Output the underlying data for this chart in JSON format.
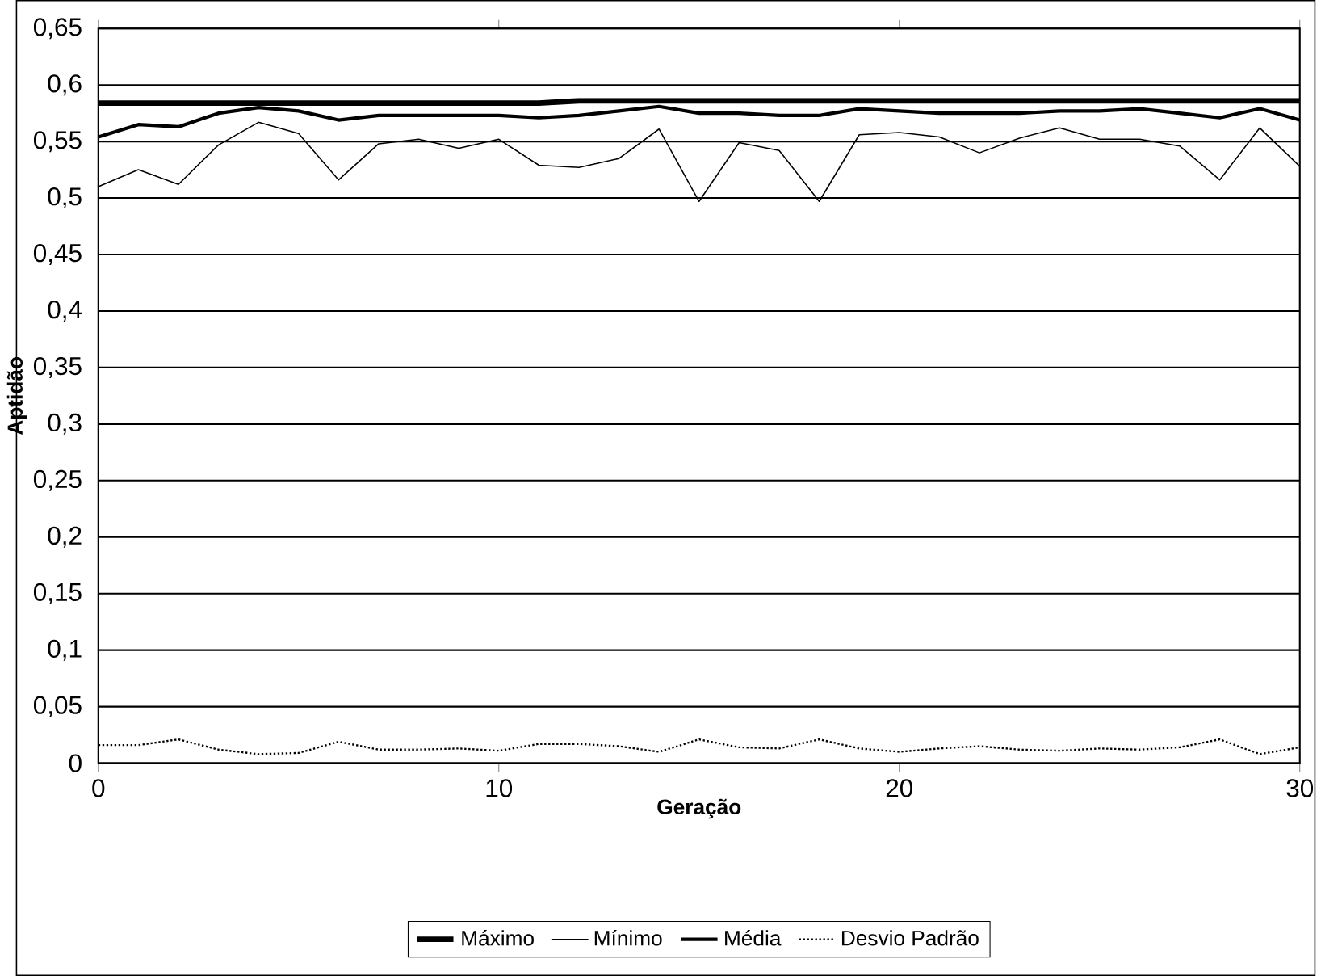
{
  "chart_data": {
    "type": "line",
    "xlabel": "Geração",
    "ylabel": "Aptidão",
    "x": [
      0,
      1,
      2,
      3,
      4,
      5,
      6,
      7,
      8,
      9,
      10,
      11,
      12,
      13,
      14,
      15,
      16,
      17,
      18,
      19,
      20,
      21,
      22,
      23,
      24,
      25,
      26,
      27,
      28,
      29,
      30
    ],
    "series": [
      {
        "name": "Máximo",
        "color": "#000000",
        "line_style": "solid",
        "values": [
          0.584,
          0.584,
          0.584,
          0.584,
          0.584,
          0.584,
          0.584,
          0.584,
          0.584,
          0.584,
          0.584,
          0.584,
          0.586,
          0.586,
          0.586,
          0.586,
          0.586,
          0.586,
          0.586,
          0.586,
          0.586,
          0.586,
          0.586,
          0.586,
          0.586,
          0.586,
          0.586,
          0.586,
          0.586,
          0.586,
          0.586
        ]
      },
      {
        "name": "Mínimo",
        "color": "#000000",
        "line_style": "solid",
        "values": [
          0.51,
          0.525,
          0.512,
          0.547,
          0.567,
          0.557,
          0.516,
          0.548,
          0.552,
          0.544,
          0.552,
          0.529,
          0.527,
          0.535,
          0.561,
          0.497,
          0.549,
          0.542,
          0.497,
          0.556,
          0.558,
          0.554,
          0.54,
          0.553,
          0.562,
          0.552,
          0.552,
          0.546,
          0.516,
          0.562,
          0.528
        ]
      },
      {
        "name": "Média",
        "color": "#000000",
        "line_style": "solid",
        "values": [
          0.554,
          0.565,
          0.563,
          0.575,
          0.58,
          0.577,
          0.569,
          0.573,
          0.573,
          0.573,
          0.573,
          0.571,
          0.573,
          0.577,
          0.581,
          0.575,
          0.575,
          0.573,
          0.573,
          0.579,
          0.577,
          0.575,
          0.575,
          0.575,
          0.577,
          0.577,
          0.579,
          0.575,
          0.571,
          0.579,
          0.569
        ]
      },
      {
        "name": "Desvio Padrão",
        "color": "#000000",
        "line_style": "dotted",
        "values": [
          0.016,
          0.016,
          0.021,
          0.012,
          0.008,
          0.009,
          0.019,
          0.012,
          0.012,
          0.013,
          0.011,
          0.017,
          0.017,
          0.015,
          0.01,
          0.021,
          0.014,
          0.013,
          0.021,
          0.013,
          0.01,
          0.013,
          0.015,
          0.012,
          0.011,
          0.013,
          0.012,
          0.014,
          0.021,
          0.008,
          0.014
        ]
      }
    ],
    "xlim": [
      0,
      30
    ],
    "xticks": [
      0,
      10,
      20,
      30
    ],
    "ylim": [
      0,
      0.65
    ],
    "yticks": [
      {
        "value": 0,
        "label": "0"
      },
      {
        "value": 0.05,
        "label": "0,05"
      },
      {
        "value": 0.1,
        "label": "0,1"
      },
      {
        "value": 0.15,
        "label": "0,15"
      },
      {
        "value": 0.2,
        "label": "0,2"
      },
      {
        "value": 0.25,
        "label": "0,25"
      },
      {
        "value": 0.3,
        "label": "0,3"
      },
      {
        "value": 0.35,
        "label": "0,35"
      },
      {
        "value": 0.4,
        "label": "0,4"
      },
      {
        "value": 0.45,
        "label": "0,45"
      },
      {
        "value": 0.5,
        "label": "0,5"
      },
      {
        "value": 0.55,
        "label": "0,55"
      },
      {
        "value": 0.6,
        "label": "0,6"
      },
      {
        "value": 0.65,
        "label": "0,65"
      }
    ],
    "grid": "y",
    "legend": "bottom",
    "marker": "none"
  }
}
